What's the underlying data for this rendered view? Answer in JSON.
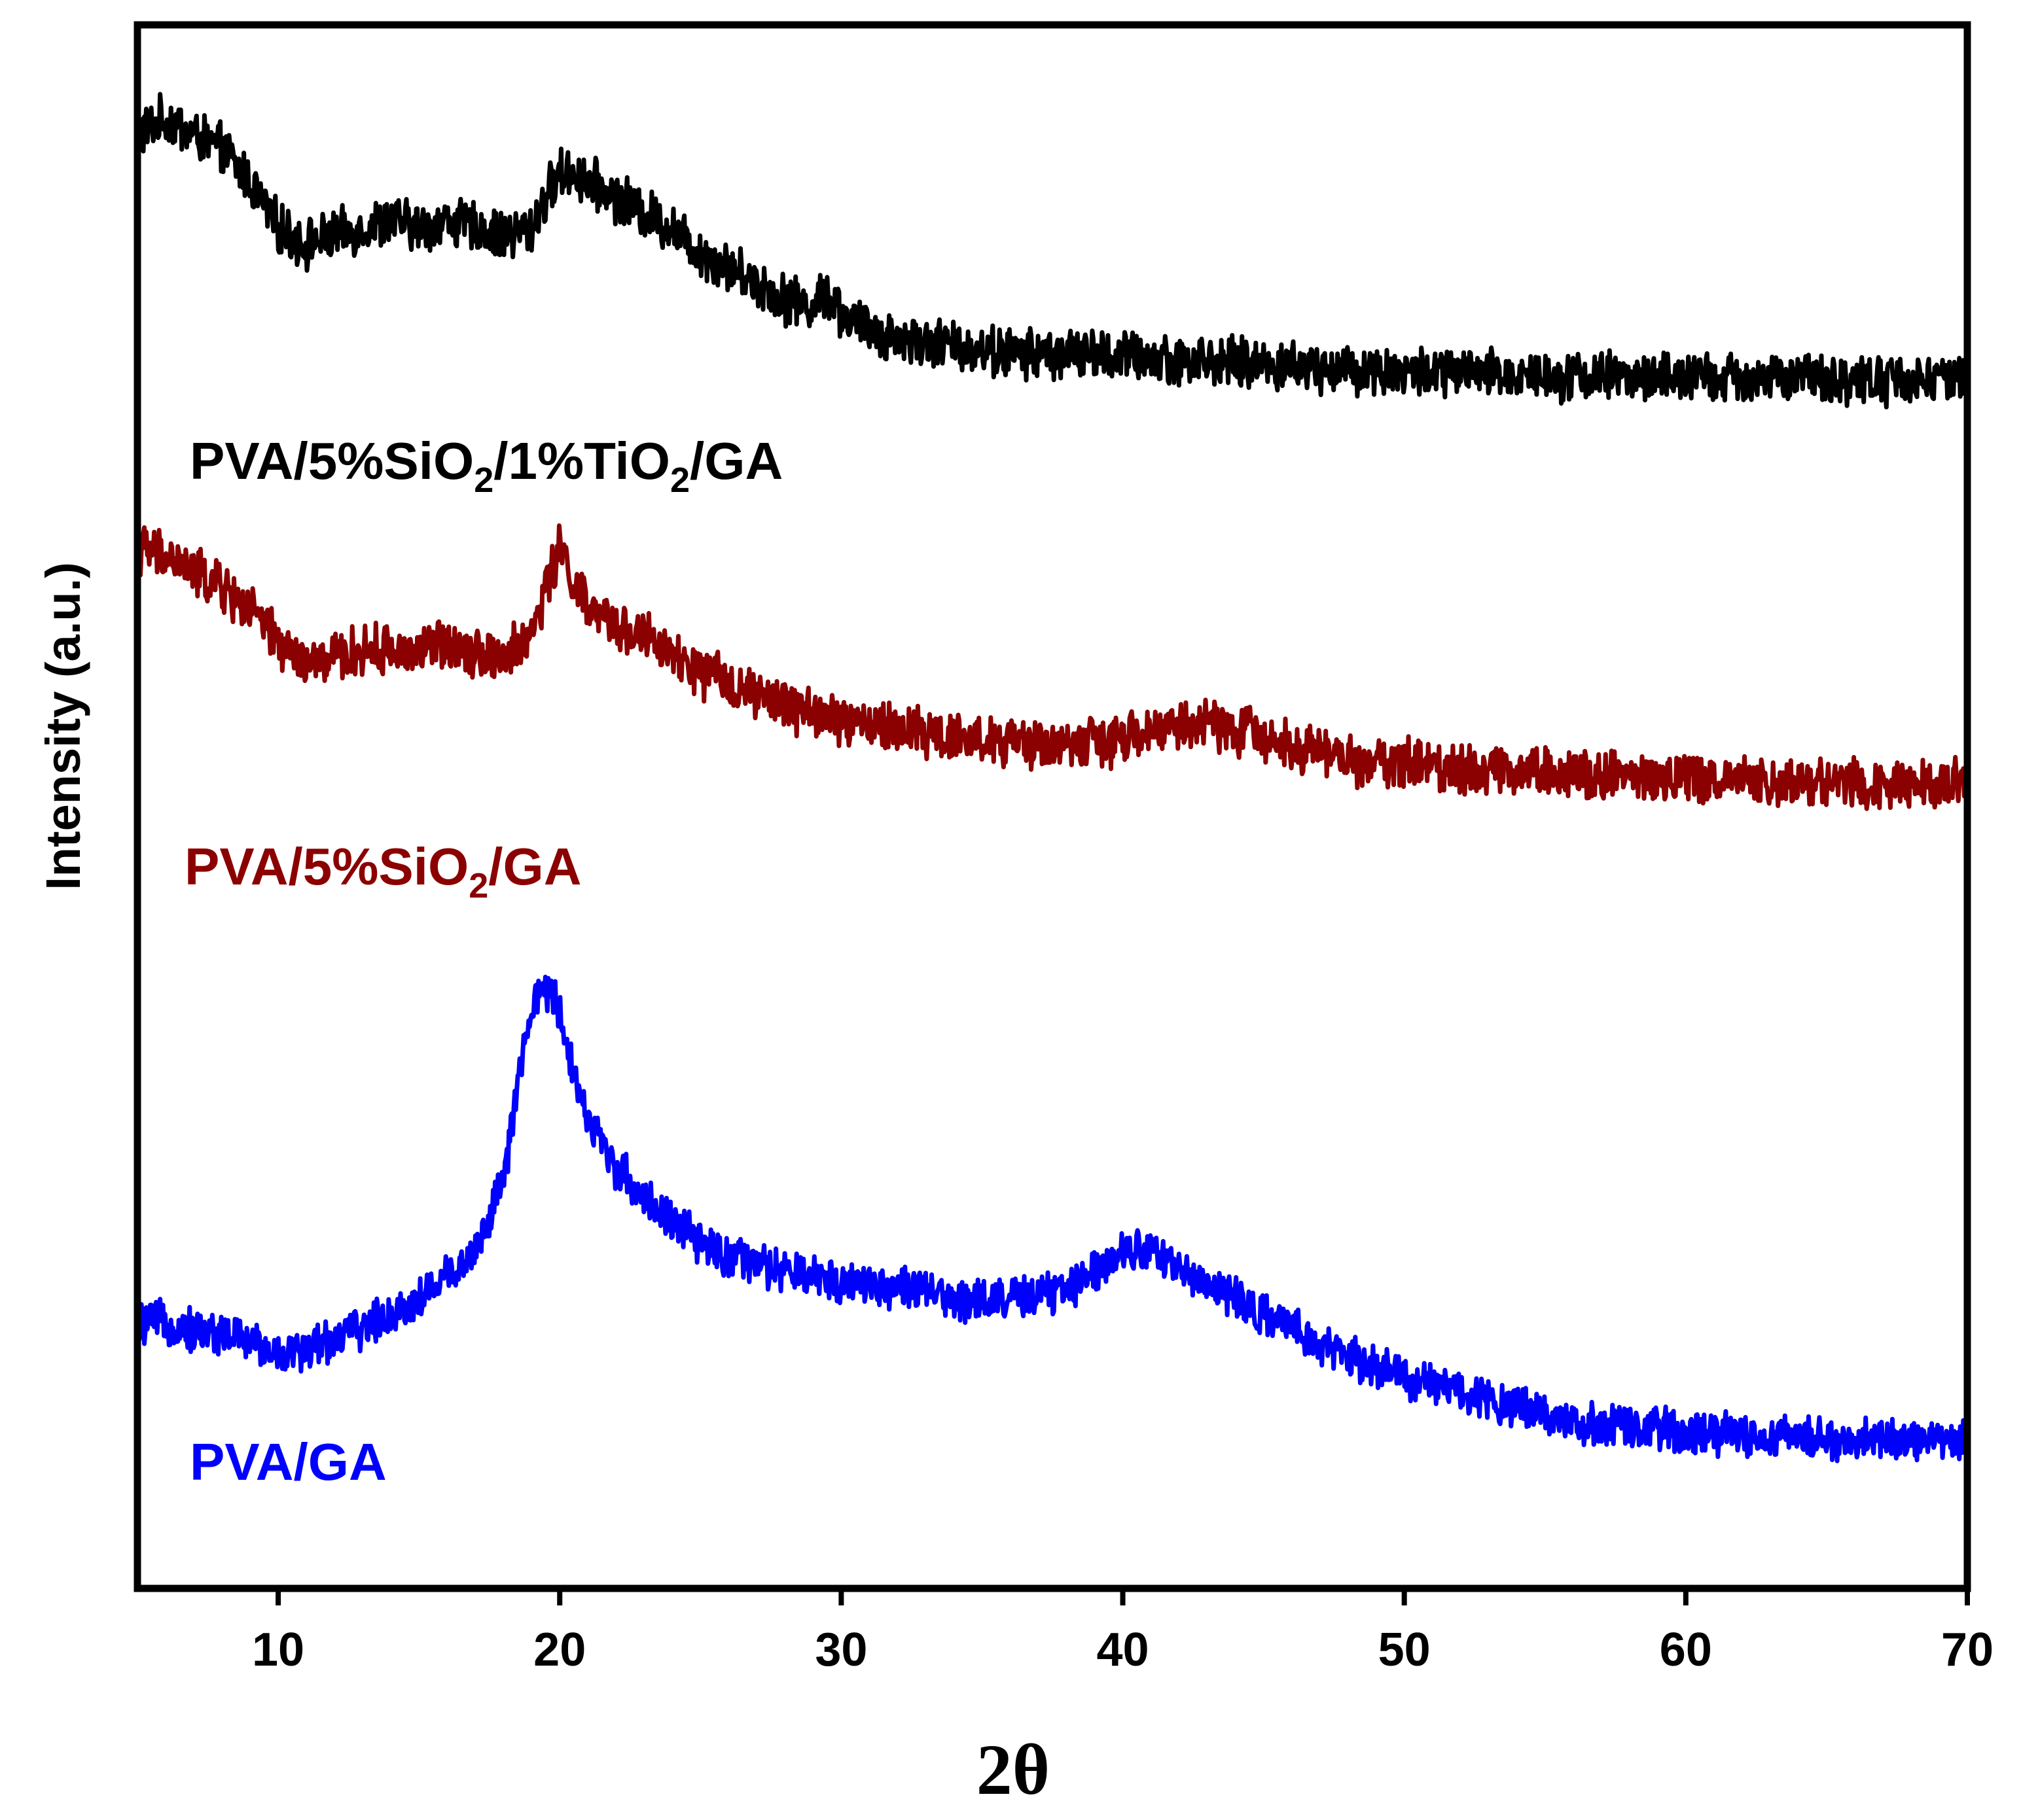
{
  "chart_data": {
    "type": "line",
    "title": "",
    "xlabel": "2θ",
    "ylabel": "Intensity (a.u.)",
    "xlim": [
      5,
      70
    ],
    "ylim": [
      0,
      100
    ],
    "y_ticks_shown": false,
    "x_ticks": [
      10,
      20,
      30,
      40,
      50,
      60,
      70
    ],
    "x_tick_labels": [
      "10",
      "20",
      "30",
      "40",
      "50",
      "60",
      "70"
    ],
    "series": [
      {
        "name": "PVA/5%SiO2/1%TiO2/GA",
        "label_parts": [
          "PVA/5%SiO",
          "2",
          "/1%TiO",
          "2",
          "/GA"
        ],
        "color": "#000000",
        "noise": 1.4,
        "x": [
          5,
          6,
          7,
          8,
          9,
          10,
          11,
          12,
          13,
          14,
          15,
          16,
          17,
          18,
          19,
          19.5,
          20,
          20.5,
          21,
          22,
          23,
          24,
          25,
          26,
          27,
          28,
          29,
          29.5,
          30,
          31,
          32,
          34,
          36,
          38,
          40,
          42,
          44,
          46,
          48,
          50,
          52,
          55,
          58,
          60,
          63,
          66,
          70
        ],
        "y": [
          93,
          94,
          93,
          92,
          90,
          87,
          86,
          86.5,
          87,
          87.5,
          87,
          87.5,
          87,
          86.5,
          87,
          89,
          90.5,
          90.5,
          90,
          89,
          88,
          87,
          85.5,
          84.5,
          83.5,
          82.5,
          82,
          83,
          81.5,
          80.5,
          80,
          79.5,
          79,
          79,
          78.8,
          78.6,
          78.4,
          78.2,
          78,
          77.8,
          77.7,
          77.6,
          77.5,
          77.4,
          77.4,
          77.3,
          77.3
        ]
      },
      {
        "name": "PVA/5%SiO2/GA",
        "label_parts": [
          "PVA/5%SiO",
          "2",
          "/GA"
        ],
        "color": "#8b0000",
        "noise": 1.4,
        "x": [
          5,
          6,
          7,
          8,
          9,
          10,
          11,
          12,
          13,
          14,
          15,
          16,
          17,
          18,
          19,
          19.5,
          20,
          20.5,
          21,
          22,
          23,
          24,
          25,
          26,
          27,
          28,
          30,
          32,
          34,
          36,
          38,
          40,
          41,
          42,
          43,
          44,
          46,
          48,
          50,
          52,
          55,
          58,
          60,
          63,
          66,
          70
        ],
        "y": [
          66.5,
          66,
          65,
          64,
          62.5,
          60.5,
          59,
          59.5,
          60,
          60,
          60,
          60.5,
          60,
          59.5,
          61,
          64,
          66.5,
          64.5,
          62.5,
          61.5,
          61,
          59.5,
          58.5,
          58,
          57,
          56.5,
          55.5,
          55,
          54.5,
          54,
          54,
          54.2,
          54.8,
          55.2,
          55.3,
          55,
          54,
          53,
          52.8,
          52.5,
          52.3,
          52,
          51.8,
          51.7,
          51.6,
          51.5
        ]
      },
      {
        "name": "PVA/GA",
        "label_parts": [
          "PVA/GA"
        ],
        "color": "#0000ff",
        "noise": 1.2,
        "x": [
          5,
          6,
          7,
          8,
          9,
          10,
          11,
          12,
          13,
          14,
          15,
          16,
          17,
          18,
          18.5,
          19,
          19.5,
          20,
          20.5,
          21,
          22,
          23,
          24,
          25,
          26,
          28,
          30,
          32,
          34,
          36,
          38,
          39,
          40,
          40.5,
          41,
          42,
          44,
          46,
          48,
          50,
          52,
          54,
          56,
          58,
          60,
          63,
          66,
          70
        ],
        "y": [
          17,
          17,
          16.5,
          16.3,
          15.8,
          15,
          15.3,
          16,
          16.7,
          17.5,
          18.5,
          20,
          21.5,
          26,
          32,
          37,
          38.5,
          37,
          33,
          30,
          27,
          25,
          23.5,
          22,
          21.2,
          20.2,
          19.7,
          19.3,
          18.5,
          18.5,
          19,
          20.5,
          21.5,
          22,
          21.5,
          20.5,
          18.5,
          16.5,
          14.8,
          13.5,
          12.5,
          11.8,
          10.5,
          10.3,
          10,
          9.7,
          9.5,
          9.5
        ]
      }
    ]
  }
}
